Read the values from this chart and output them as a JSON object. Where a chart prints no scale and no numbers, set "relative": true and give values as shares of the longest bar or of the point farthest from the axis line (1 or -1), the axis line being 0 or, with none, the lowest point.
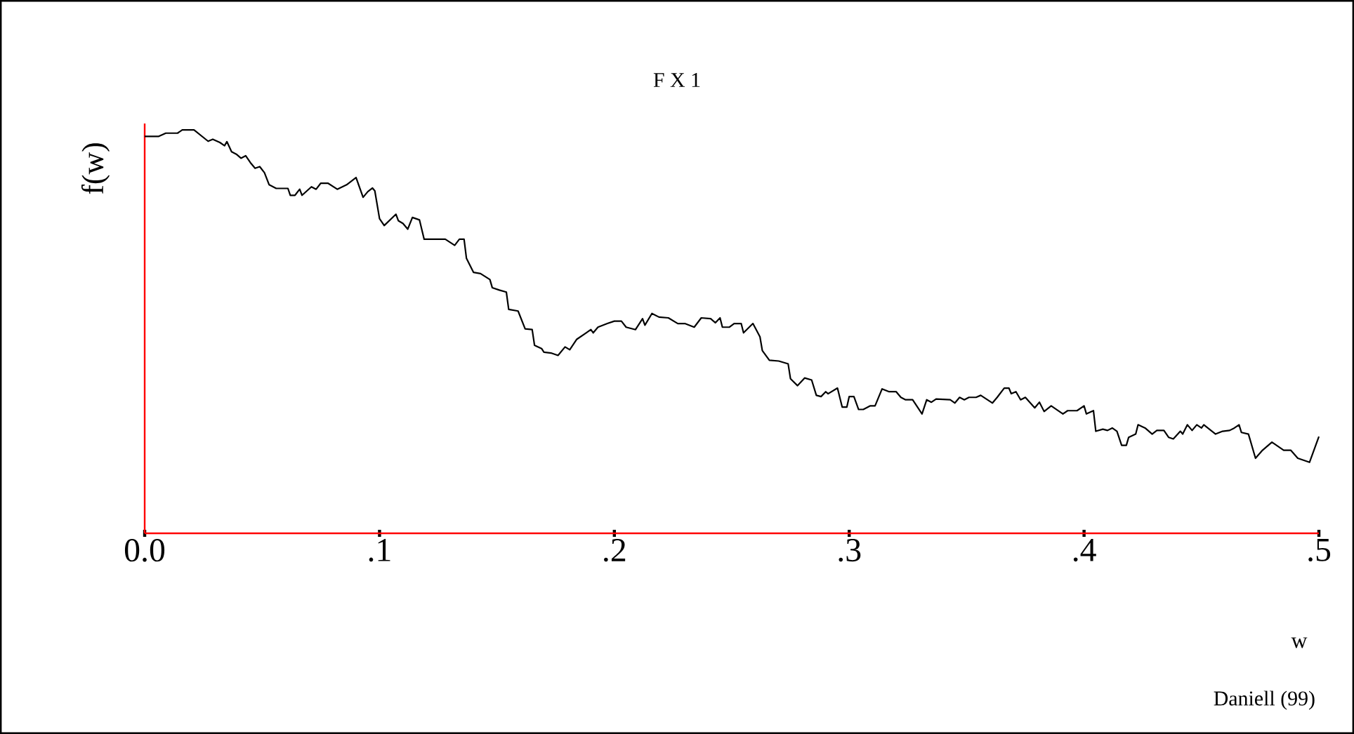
{
  "chart_data": {
    "type": "line",
    "title": "F X 1",
    "xlabel": "w",
    "ylabel": "f(w)",
    "annotations": [
      "Daniell (99)"
    ],
    "relative": true,
    "xlim": [
      0,
      0.5
    ],
    "xticks": [
      {
        "value": 0,
        "label": "0.0"
      },
      {
        "value": 0.1,
        "label": ".1"
      },
      {
        "value": 0.2,
        "label": ".2"
      },
      {
        "value": 0.3,
        "label": ".3"
      },
      {
        "value": 0.4,
        "label": ".4"
      },
      {
        "value": 0.5,
        "label": ".5"
      }
    ],
    "line_style": "solid",
    "x": [
      0.0,
      0.006,
      0.009,
      0.014,
      0.016,
      0.021,
      0.027,
      0.029,
      0.032,
      0.034,
      0.035,
      0.037,
      0.039,
      0.041,
      0.043,
      0.045,
      0.047,
      0.049,
      0.051,
      0.053,
      0.056,
      0.061,
      0.062,
      0.064,
      0.066,
      0.067,
      0.071,
      0.073,
      0.075,
      0.078,
      0.082,
      0.086,
      0.09,
      0.093,
      0.095,
      0.097,
      0.098,
      0.1,
      0.102,
      0.107,
      0.108,
      0.11,
      0.112,
      0.114,
      0.117,
      0.119,
      0.128,
      0.132,
      0.134,
      0.136,
      0.137,
      0.14,
      0.143,
      0.147,
      0.148,
      0.151,
      0.154,
      0.155,
      0.159,
      0.162,
      0.165,
      0.166,
      0.169,
      0.17,
      0.173,
      0.176,
      0.179,
      0.181,
      0.184,
      0.188,
      0.19,
      0.191,
      0.193,
      0.197,
      0.2,
      0.203,
      0.205,
      0.209,
      0.212,
      0.213,
      0.216,
      0.219,
      0.223,
      0.227,
      0.23,
      0.234,
      0.237,
      0.241,
      0.243,
      0.245,
      0.246,
      0.249,
      0.251,
      0.254,
      0.255,
      0.259,
      0.262,
      0.263,
      0.266,
      0.27,
      0.274,
      0.275,
      0.278,
      0.281,
      0.284,
      0.286,
      0.288,
      0.29,
      0.291,
      0.295,
      0.297,
      0.299,
      0.3,
      0.302,
      0.304,
      0.306,
      0.309,
      0.311,
      0.314,
      0.317,
      0.32,
      0.322,
      0.324,
      0.327,
      0.331,
      0.333,
      0.335,
      0.337,
      0.343,
      0.345,
      0.347,
      0.349,
      0.351,
      0.354,
      0.356,
      0.361,
      0.363,
      0.366,
      0.368,
      0.369,
      0.371,
      0.373,
      0.375,
      0.379,
      0.381,
      0.383,
      0.386,
      0.391,
      0.393,
      0.397,
      0.4,
      0.401,
      0.404,
      0.405,
      0.408,
      0.41,
      0.412,
      0.414,
      0.416,
      0.418,
      0.419,
      0.422,
      0.423,
      0.426,
      0.429,
      0.431,
      0.434,
      0.436,
      0.438,
      0.441,
      0.442,
      0.444,
      0.446,
      0.448,
      0.45,
      0.451,
      0.456,
      0.459,
      0.462,
      0.464,
      0.466,
      0.467,
      0.47,
      0.473,
      0.476,
      0.48,
      0.485,
      0.488,
      0.491,
      0.496,
      0.5
    ],
    "series": [
      {
        "color": "#000000",
        "values": [
          0.984,
          0.984,
          0.992,
          0.992,
          1.0,
          1.0,
          0.972,
          0.977,
          0.969,
          0.961,
          0.971,
          0.946,
          0.94,
          0.93,
          0.936,
          0.919,
          0.905,
          0.909,
          0.894,
          0.864,
          0.855,
          0.855,
          0.838,
          0.838,
          0.853,
          0.838,
          0.859,
          0.853,
          0.868,
          0.868,
          0.853,
          0.864,
          0.882,
          0.833,
          0.847,
          0.856,
          0.849,
          0.78,
          0.763,
          0.791,
          0.775,
          0.768,
          0.754,
          0.783,
          0.777,
          0.729,
          0.729,
          0.714,
          0.729,
          0.729,
          0.682,
          0.647,
          0.644,
          0.629,
          0.609,
          0.603,
          0.598,
          0.555,
          0.551,
          0.507,
          0.505,
          0.466,
          0.458,
          0.449,
          0.447,
          0.441,
          0.462,
          0.455,
          0.481,
          0.497,
          0.505,
          0.497,
          0.511,
          0.52,
          0.526,
          0.526,
          0.511,
          0.505,
          0.532,
          0.516,
          0.545,
          0.536,
          0.534,
          0.52,
          0.52,
          0.511,
          0.534,
          0.532,
          0.522,
          0.534,
          0.511,
          0.511,
          0.52,
          0.52,
          0.497,
          0.52,
          0.487,
          0.453,
          0.429,
          0.427,
          0.42,
          0.383,
          0.366,
          0.385,
          0.38,
          0.342,
          0.339,
          0.351,
          0.346,
          0.36,
          0.313,
          0.313,
          0.339,
          0.339,
          0.307,
          0.307,
          0.316,
          0.316,
          0.358,
          0.351,
          0.351,
          0.337,
          0.331,
          0.331,
          0.296,
          0.331,
          0.325,
          0.333,
          0.331,
          0.323,
          0.337,
          0.331,
          0.337,
          0.337,
          0.342,
          0.323,
          0.337,
          0.36,
          0.36,
          0.346,
          0.351,
          0.331,
          0.337,
          0.311,
          0.325,
          0.302,
          0.316,
          0.296,
          0.304,
          0.304,
          0.316,
          0.296,
          0.304,
          0.253,
          0.258,
          0.255,
          0.261,
          0.253,
          0.218,
          0.218,
          0.238,
          0.246,
          0.269,
          0.261,
          0.246,
          0.255,
          0.255,
          0.238,
          0.234,
          0.253,
          0.246,
          0.269,
          0.255,
          0.269,
          0.261,
          0.269,
          0.246,
          0.253,
          0.255,
          0.261,
          0.269,
          0.25,
          0.246,
          0.186,
          0.206,
          0.226,
          0.206,
          0.206,
          0.186,
          0.176,
          0.24
        ]
      }
    ]
  }
}
